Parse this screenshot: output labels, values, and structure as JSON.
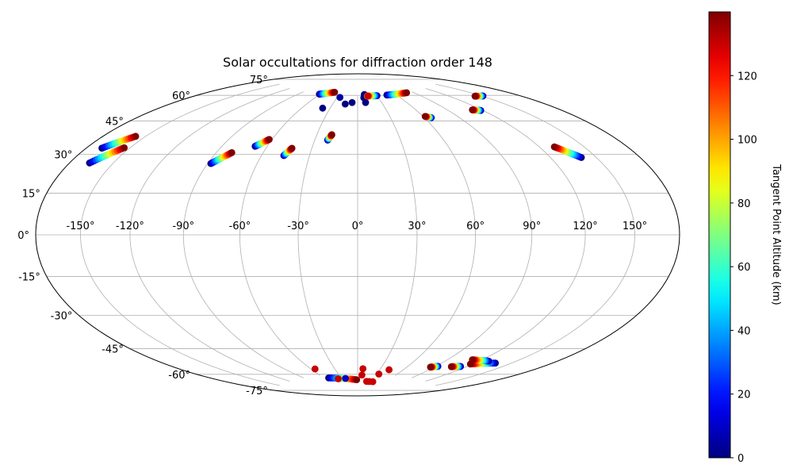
{
  "chart_data": {
    "type": "scatter",
    "projection": "hammer",
    "title": "Solar occultations for diffraction order 148",
    "grid": true,
    "lon_ticks": [
      "-150°",
      "-120°",
      "-90°",
      "-60°",
      "-30°",
      "0°",
      "30°",
      "60°",
      "90°",
      "120°",
      "150°"
    ],
    "lat_ticks": [
      "-75°",
      "-60°",
      "-45°",
      "-30°",
      "-15°",
      "0°",
      "15°",
      "30°",
      "45°",
      "60°",
      "75°"
    ],
    "colorbar": {
      "label": "Tangent Point Altitude (km)",
      "colormap": "jet",
      "range": [
        0,
        140
      ],
      "ticks": [
        "0",
        "20",
        "40",
        "60",
        "80",
        "100",
        "120"
      ]
    },
    "tracks": [
      {
        "lon": [
          -169,
          -157
        ],
        "lat": [
          34,
          41
        ]
      },
      {
        "lon": [
          -166,
          -154
        ],
        "lat": [
          28,
          36
        ]
      },
      {
        "lon": [
          -88,
          -80
        ],
        "lat": [
          34,
          40
        ]
      },
      {
        "lon": [
          -68,
          -62
        ],
        "lat": [
          44,
          48
        ]
      },
      {
        "lon": [
          -46,
          -43
        ],
        "lat": [
          40,
          44
        ]
      },
      {
        "lon": [
          -21,
          -19
        ],
        "lat": [
          49,
          52
        ]
      },
      {
        "lon": [
          -61,
          -41
        ],
        "lat": [
          75,
          77
        ]
      },
      {
        "lon": [
          140,
          130
        ],
        "lat": [
          33,
          39
        ]
      },
      {
        "lon": [
          46,
          80
        ],
        "lat": [
          75,
          75
        ]
      },
      {
        "lon": [
          30,
          13
        ],
        "lat": [
          75,
          75
        ]
      },
      {
        "lon": [
          66,
          62
        ],
        "lat": [
          60,
          61
        ]
      },
      {
        "lon": [
          118,
          112
        ],
        "lat": [
          60,
          61
        ]
      },
      {
        "lon": [
          151,
          144
        ],
        "lat": [
          65,
          66
        ]
      },
      {
        "lon": [
          -52,
          -2
        ],
        "lat": [
          -77,
          -79
        ]
      },
      {
        "lon": [
          137,
          118
        ],
        "lat": [
          -60,
          -63
        ]
      },
      {
        "lon": [
          128,
          112
        ],
        "lat": [
          -60,
          -61
        ]
      },
      {
        "lon": [
          92,
          86
        ],
        "lat": [
          -67,
          -68
        ]
      },
      {
        "lon": [
          114,
          106
        ],
        "lat": [
          -65,
          -66
        ]
      }
    ],
    "points": [
      {
        "lon": -38,
        "lat": 67,
        "alt": 0
      },
      {
        "lon": -26,
        "lat": 74,
        "alt": 5
      },
      {
        "lon": -15,
        "lat": 70,
        "alt": 0
      },
      {
        "lon": -7,
        "lat": 71,
        "alt": 0
      },
      {
        "lon": 9,
        "lat": 74,
        "alt": 0
      },
      {
        "lon": 10,
        "lat": 71,
        "alt": 0
      },
      {
        "lon": 11,
        "lat": 76,
        "alt": 0
      },
      {
        "lon": 15,
        "lat": 75,
        "alt": 110
      },
      {
        "lon": 16,
        "lat": 75,
        "alt": 130
      },
      {
        "lon": -55,
        "lat": -71,
        "alt": 130
      },
      {
        "lon": -37,
        "lat": -78,
        "alt": 130
      },
      {
        "lon": -23,
        "lat": -78,
        "alt": 10
      },
      {
        "lon": 7,
        "lat": -72,
        "alt": 130
      },
      {
        "lon": 7,
        "lat": -76,
        "alt": 130
      },
      {
        "lon": 20,
        "lat": -80,
        "alt": 130
      },
      {
        "lon": 26,
        "lat": -80,
        "alt": 130
      },
      {
        "lon": 34,
        "lat": -80,
        "alt": 130
      },
      {
        "lon": 33,
        "lat": -75,
        "alt": 130
      },
      {
        "lon": 42,
        "lat": -72,
        "alt": 130
      }
    ]
  }
}
